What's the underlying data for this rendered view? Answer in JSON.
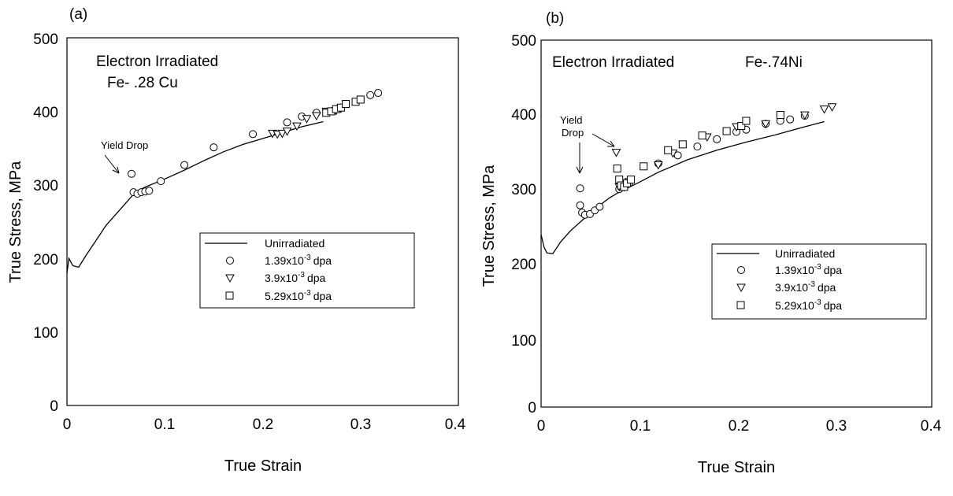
{
  "chart_data": [
    {
      "type": "scatter",
      "panel_label": "(a)",
      "xlabel": "True Strain",
      "ylabel": "True Stress, MPa",
      "xlim": [
        0,
        0.4
      ],
      "ylim": [
        0,
        500
      ],
      "xticks": [
        "0",
        "0.1",
        "0.2",
        "0.3",
        "0.4"
      ],
      "yticks": [
        "0",
        "100",
        "200",
        "300",
        "400",
        "500"
      ],
      "annotations": {
        "title_line1": "Electron Irradiated",
        "title_line2": "Fe- .28 Cu",
        "yield": "Yield Drop"
      },
      "legend": {
        "placement": "center-right",
        "entries": [
          {
            "label": "Unirradiated",
            "marker": "line"
          },
          {
            "label_base": "1.39x10",
            "label_exp": "-3",
            "label_unit": "dpa",
            "marker": "circle"
          },
          {
            "label_base": "3.9x10",
            "label_exp": "-3",
            "label_unit": "dpa",
            "marker": "triangle"
          },
          {
            "label_base": "5.29x10",
            "label_exp": "-3",
            "label_unit": "dpa",
            "marker": "square"
          }
        ]
      },
      "series": [
        {
          "name": "Unirradiated",
          "kind": "line",
          "points": [
            [
              0,
              180
            ],
            [
              0.002,
              200
            ],
            [
              0.004,
              195
            ],
            [
              0.006,
              190
            ],
            [
              0.012,
              188
            ],
            [
              0.02,
              205
            ],
            [
              0.03,
              225
            ],
            [
              0.04,
              245
            ],
            [
              0.05,
              260
            ],
            [
              0.06,
              275
            ],
            [
              0.07,
              290
            ],
            [
              0.08,
              297
            ],
            [
              0.1,
              308
            ],
            [
              0.12,
              320
            ],
            [
              0.14,
              333
            ],
            [
              0.16,
              345
            ],
            [
              0.18,
              355
            ],
            [
              0.2,
              363
            ],
            [
              0.22,
              371
            ],
            [
              0.24,
              379
            ],
            [
              0.262,
              386
            ]
          ]
        },
        {
          "name": "1.39x10-3 dpa",
          "kind": "circle",
          "points": [
            [
              0.066,
              315
            ],
            [
              0.068,
              290
            ],
            [
              0.072,
              288
            ],
            [
              0.076,
              290
            ],
            [
              0.08,
              291
            ],
            [
              0.084,
              292
            ],
            [
              0.096,
              305
            ],
            [
              0.12,
              327
            ],
            [
              0.15,
              351
            ],
            [
              0.19,
              369
            ],
            [
              0.225,
              385
            ],
            [
              0.24,
              393
            ],
            [
              0.255,
              398
            ],
            [
              0.27,
              400
            ],
            [
              0.285,
              410
            ],
            [
              0.31,
              422
            ],
            [
              0.318,
              425
            ]
          ]
        },
        {
          "name": "3.9x10-3 dpa",
          "kind": "triangle",
          "points": [
            [
              0.21,
              370
            ],
            [
              0.215,
              369
            ],
            [
              0.22,
              370
            ],
            [
              0.225,
              373
            ],
            [
              0.235,
              380
            ],
            [
              0.245,
              390
            ],
            [
              0.255,
              394
            ],
            [
              0.265,
              400
            ],
            [
              0.275,
              401
            ],
            [
              0.28,
              404
            ]
          ]
        },
        {
          "name": "5.29x10-3 dpa",
          "kind": "square",
          "points": [
            [
              0.265,
              398
            ],
            [
              0.27,
              400
            ],
            [
              0.275,
              403
            ],
            [
              0.28,
              405
            ],
            [
              0.285,
              410
            ],
            [
              0.295,
              413
            ],
            [
              0.3,
              416
            ]
          ]
        }
      ]
    },
    {
      "type": "scatter",
      "panel_label": "(b)",
      "xlabel": "True Strain",
      "ylabel": "True Stress, MPa",
      "xlim": [
        0,
        0.4
      ],
      "ylim": [
        0,
        500
      ],
      "xticks": [
        "0",
        "0.1",
        "0.2",
        "0.3",
        "0.4"
      ],
      "yticks": [
        "0",
        "100",
        "200",
        "300",
        "400",
        "500"
      ],
      "annotations": {
        "title_line1": "Electron Irradiated",
        "title_line2": "Fe-.74Ni",
        "yield_line1": "Yield",
        "yield_line2": "Drop"
      },
      "legend": {
        "placement": "center-right",
        "entries": [
          {
            "label": "Unirradiated",
            "marker": "line"
          },
          {
            "label_base": "1.39x10",
            "label_exp": "-3",
            "label_unit": "dpa",
            "marker": "circle"
          },
          {
            "label_base": "3.9x10",
            "label_exp": "-3",
            "label_unit": "dpa",
            "marker": "triangle"
          },
          {
            "label_base": "5.29x10",
            "label_exp": "-3",
            "label_unit": "dpa",
            "marker": "square"
          }
        ]
      },
      "series": [
        {
          "name": "Unirradiated",
          "kind": "line",
          "points": [
            [
              0,
              235
            ],
            [
              0.003,
              218
            ],
            [
              0.006,
              210
            ],
            [
              0.012,
              209
            ],
            [
              0.02,
              225
            ],
            [
              0.03,
              240
            ],
            [
              0.04,
              252
            ],
            [
              0.05,
              264
            ],
            [
              0.06,
              275
            ],
            [
              0.07,
              285
            ],
            [
              0.08,
              293
            ],
            [
              0.1,
              306
            ],
            [
              0.12,
              320
            ],
            [
              0.15,
              337
            ],
            [
              0.18,
              350
            ],
            [
              0.21,
              361
            ],
            [
              0.24,
              371
            ],
            [
              0.27,
              382
            ],
            [
              0.29,
              389
            ]
          ]
        },
        {
          "name": "1.39x10-3 dpa",
          "kind": "circle",
          "points": [
            [
              0.04,
              298
            ],
            [
              0.04,
              275
            ],
            [
              0.042,
              265
            ],
            [
              0.045,
              262
            ],
            [
              0.05,
              263
            ],
            [
              0.055,
              268
            ],
            [
              0.06,
              273
            ],
            [
              0.08,
              297
            ],
            [
              0.085,
              300
            ],
            [
              0.09,
              305
            ],
            [
              0.12,
              332
            ],
            [
              0.14,
              343
            ],
            [
              0.16,
              355
            ],
            [
              0.18,
              365
            ],
            [
              0.2,
              375
            ],
            [
              0.21,
              378
            ],
            [
              0.23,
              386
            ],
            [
              0.245,
              390
            ],
            [
              0.255,
              392
            ],
            [
              0.27,
              397
            ]
          ]
        },
        {
          "name": "3.9x10-3 dpa",
          "kind": "triangle",
          "points": [
            [
              0.077,
              347
            ],
            [
              0.08,
              300
            ],
            [
              0.085,
              300
            ],
            [
              0.09,
              307
            ],
            [
              0.12,
              330
            ],
            [
              0.135,
              346
            ],
            [
              0.17,
              368
            ],
            [
              0.2,
              382
            ],
            [
              0.23,
              386
            ],
            [
              0.27,
              398
            ],
            [
              0.29,
              406
            ],
            [
              0.298,
              409
            ]
          ]
        },
        {
          "name": "5.29x10-3 dpa",
          "kind": "square",
          "points": [
            [
              0.078,
              325
            ],
            [
              0.08,
              310
            ],
            [
              0.082,
              302
            ],
            [
              0.085,
              300
            ],
            [
              0.088,
              305
            ],
            [
              0.092,
              310
            ],
            [
              0.105,
              328
            ],
            [
              0.13,
              350
            ],
            [
              0.145,
              358
            ],
            [
              0.165,
              370
            ],
            [
              0.19,
              376
            ],
            [
              0.205,
              383
            ],
            [
              0.21,
              390
            ],
            [
              0.245,
              398
            ]
          ]
        }
      ]
    }
  ]
}
